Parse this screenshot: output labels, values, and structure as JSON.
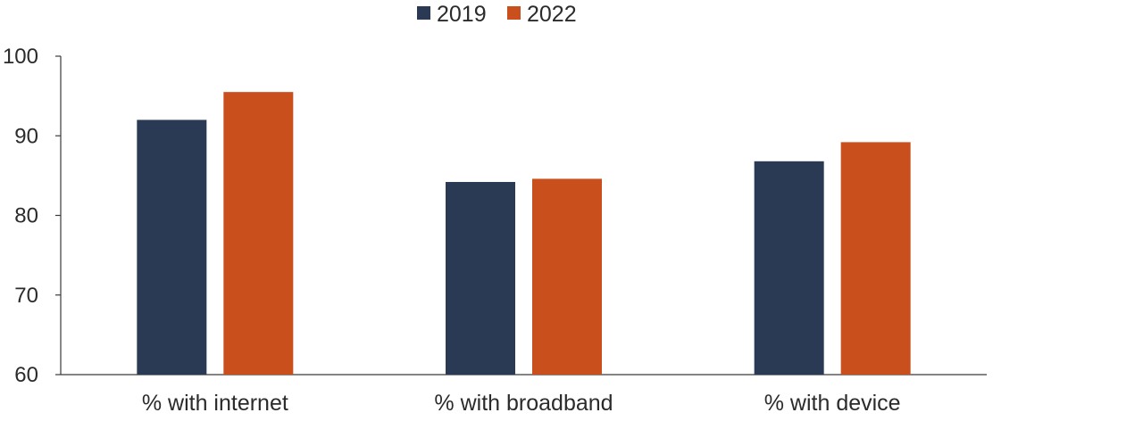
{
  "chart_data": {
    "type": "bar",
    "categories": [
      "% with internet",
      "% with broadband",
      "% with device"
    ],
    "series": [
      {
        "name": "2019",
        "values": [
          92.0,
          84.2,
          86.8
        ],
        "color": "#2a3a55"
      },
      {
        "name": "2022",
        "values": [
          95.5,
          84.6,
          89.2
        ],
        "color": "#c9501c"
      }
    ],
    "ylim": [
      60,
      100
    ],
    "yticks": [
      60,
      70,
      80,
      90,
      100
    ],
    "grid": false,
    "legend_position": "top-center",
    "title": "",
    "xlabel": "",
    "ylabel": ""
  }
}
